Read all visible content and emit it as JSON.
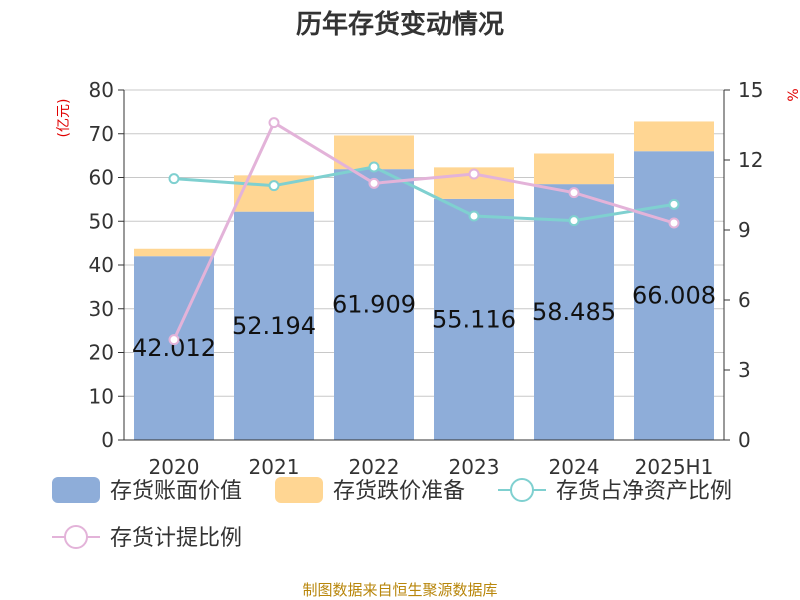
{
  "chart_data": {
    "type": "bar",
    "title": "历年存货变动情况",
    "left_axis_unit": "(亿元)",
    "right_axis_unit": "%",
    "categories": [
      "2020",
      "2021",
      "2022",
      "2023",
      "2024",
      "2025H1"
    ],
    "left_ylim": [
      0,
      80
    ],
    "left_ticks": [
      "0",
      "10",
      "20",
      "30",
      "40",
      "50",
      "60",
      "70",
      "80"
    ],
    "right_ylim": [
      0,
      15
    ],
    "right_ticks": [
      "0",
      "3",
      "6",
      "9",
      "12",
      "15"
    ],
    "bar_series": [
      {
        "name": "存货账面价值",
        "color": "#8eadd9",
        "values": [
          42.012,
          52.194,
          61.909,
          55.116,
          58.485,
          66.008
        ],
        "labels": [
          "42.012",
          "52.194",
          "61.909",
          "55.116",
          "58.485",
          "66.008"
        ]
      },
      {
        "name": "存货跌价准备",
        "color": "#ffd693",
        "values": [
          1.7,
          8.3,
          7.7,
          7.2,
          7.0,
          6.8
        ]
      }
    ],
    "line_series": [
      {
        "name": "存货占净资产比例",
        "color": "#7fd0d0",
        "axis": "right",
        "values": [
          11.2,
          10.9,
          11.7,
          9.6,
          9.4,
          10.1
        ]
      },
      {
        "name": "存货计提比例",
        "color": "#e3b3d9",
        "axis": "right",
        "values": [
          4.3,
          13.6,
          11.0,
          11.4,
          10.6,
          9.3
        ]
      }
    ],
    "grid": true,
    "legend_position": "bottom"
  },
  "footer": {
    "source": "制图数据来自恒生聚源数据库"
  }
}
